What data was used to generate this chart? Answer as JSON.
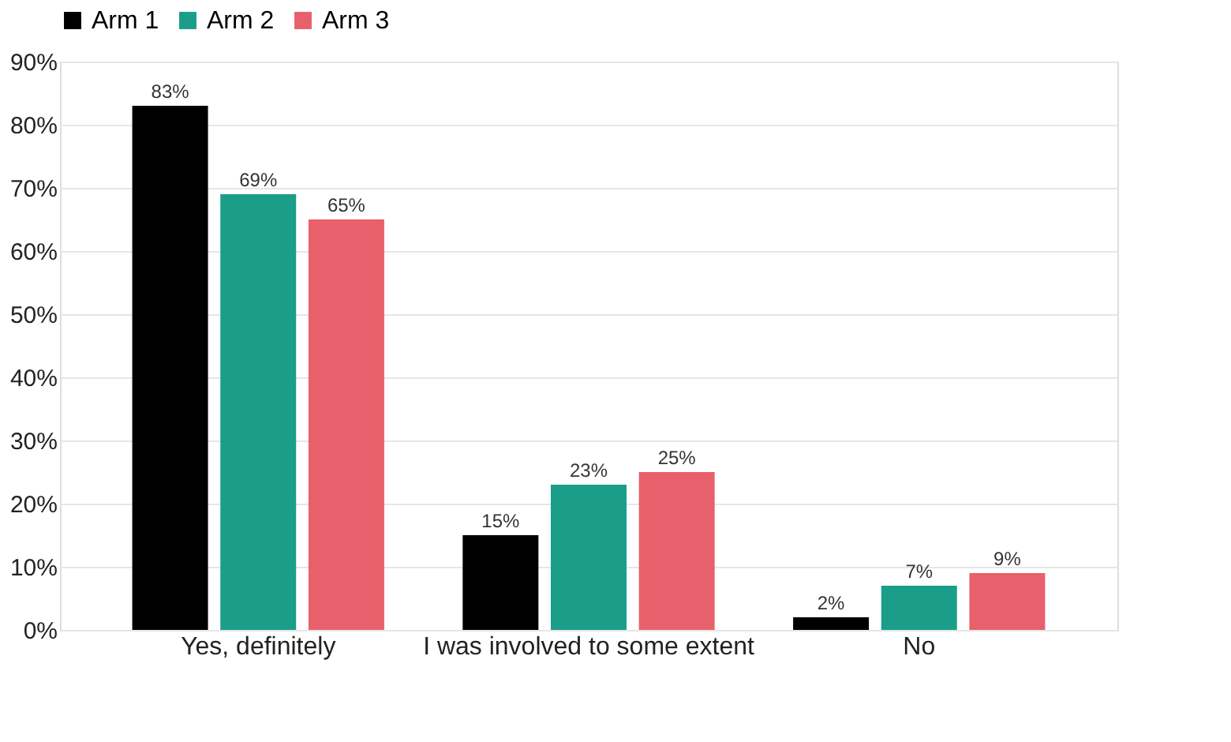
{
  "chart_data": {
    "type": "bar",
    "categories": [
      "Yes, definitely",
      "I was involved to some extent",
      "No"
    ],
    "series": [
      {
        "name": "Arm 1",
        "color": "#000000",
        "values": [
          83,
          15,
          2
        ]
      },
      {
        "name": "Arm 2",
        "color": "#1a9e8a",
        "values": [
          69,
          23,
          7
        ]
      },
      {
        "name": "Arm 3",
        "color": "#e8606b",
        "values": [
          65,
          25,
          9
        ]
      }
    ],
    "ylim": [
      0,
      90
    ],
    "yticks": [
      {
        "value": 0,
        "label": "0%"
      },
      {
        "value": 10,
        "label": "10%"
      },
      {
        "value": 20,
        "label": "20%"
      },
      {
        "value": 30,
        "label": "30%"
      },
      {
        "value": 40,
        "label": "40%"
      },
      {
        "value": 50,
        "label": "50%"
      },
      {
        "value": 60,
        "label": "60%"
      },
      {
        "value": 70,
        "label": "70%"
      },
      {
        "value": 80,
        "label": "80%"
      },
      {
        "value": 90,
        "label": "90%"
      }
    ],
    "value_labels": [
      [
        "83%",
        "15%",
        "2%"
      ],
      [
        "69%",
        "23%",
        "7%"
      ],
      [
        "65%",
        "25%",
        "9%"
      ]
    ],
    "grid": "y",
    "legend": "top"
  }
}
